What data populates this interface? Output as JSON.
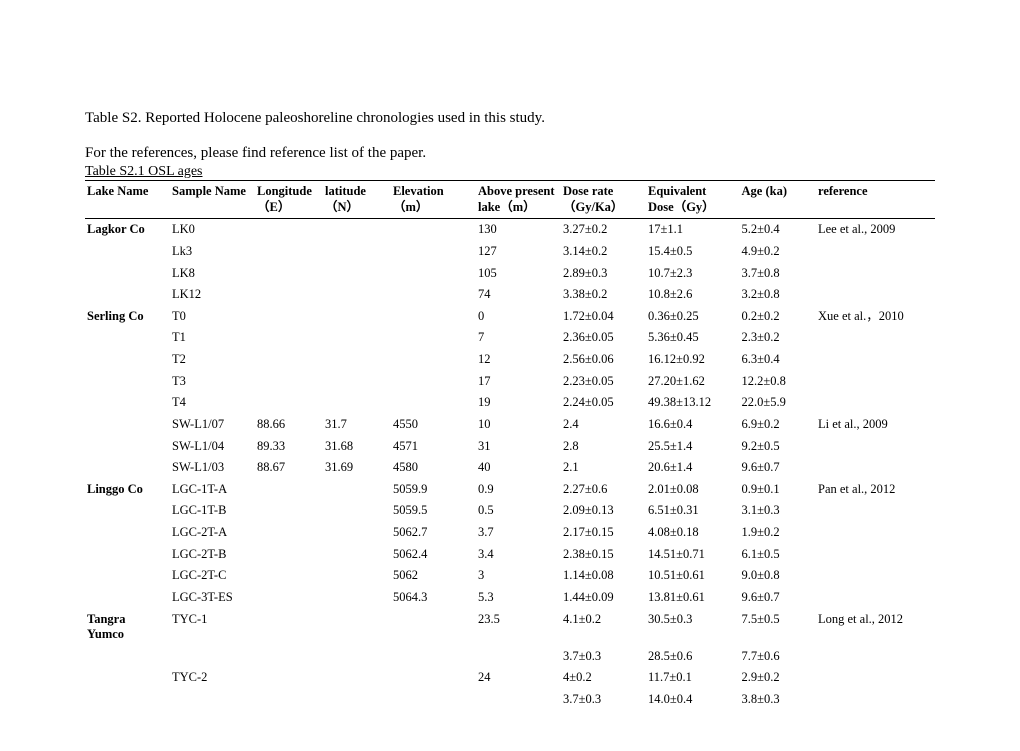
{
  "title": "Table S2. Reported Holocene paleoshoreline chronologies used in this study.",
  "subtitle": "For the references, please find reference list of the paper.",
  "subtable_title": "Table S2.1 OSL ages",
  "columns": {
    "lake": "Lake Name",
    "sample": "Sample Name",
    "lon": "Longitude（E）",
    "lat": "latitude（N）",
    "elev": "Elevation（m）",
    "above": "Above present lake（m）",
    "dose": "Dose rate（Gy/Ka）",
    "equiv": "Equivalent Dose（Gy）",
    "age": "Age (ka)",
    "ref": "reference"
  },
  "rows": [
    {
      "lake": "Lagkor Co",
      "sample": "LK0",
      "lon": "",
      "lat": "",
      "elev": "",
      "above": "130",
      "dose": "3.27±0.2",
      "equiv": "17±1.1",
      "age": "5.2±0.4",
      "ref": "Lee et al., 2009"
    },
    {
      "lake": "",
      "sample": "Lk3",
      "lon": "",
      "lat": "",
      "elev": "",
      "above": "127",
      "dose": "3.14±0.2",
      "equiv": "15.4±0.5",
      "age": "4.9±0.2",
      "ref": ""
    },
    {
      "lake": "",
      "sample": "LK8",
      "lon": "",
      "lat": "",
      "elev": "",
      "above": "105",
      "dose": "2.89±0.3",
      "equiv": "10.7±2.3",
      "age": "3.7±0.8",
      "ref": ""
    },
    {
      "lake": "",
      "sample": "LK12",
      "lon": "",
      "lat": "",
      "elev": "",
      "above": "74",
      "dose": "3.38±0.2",
      "equiv": "10.8±2.6",
      "age": "3.2±0.8",
      "ref": ""
    },
    {
      "lake": "Serling Co",
      "sample": "T0",
      "lon": "",
      "lat": "",
      "elev": "",
      "above": "0",
      "dose": "1.72±0.04",
      "equiv": "0.36±0.25",
      "age": "0.2±0.2",
      "ref": "Xue et al.，2010"
    },
    {
      "lake": "",
      "sample": "T1",
      "lon": "",
      "lat": "",
      "elev": "",
      "above": "7",
      "dose": "2.36±0.05",
      "equiv": "5.36±0.45",
      "age": "2.3±0.2",
      "ref": ""
    },
    {
      "lake": "",
      "sample": "T2",
      "lon": "",
      "lat": "",
      "elev": "",
      "above": "12",
      "dose": "2.56±0.06",
      "equiv": "16.12±0.92",
      "age": "6.3±0.4",
      "ref": ""
    },
    {
      "lake": "",
      "sample": "T3",
      "lon": "",
      "lat": "",
      "elev": "",
      "above": "17",
      "dose": "2.23±0.05",
      "equiv": "27.20±1.62",
      "age": "12.2±0.8",
      "ref": ""
    },
    {
      "lake": "",
      "sample": "T4",
      "lon": "",
      "lat": "",
      "elev": "",
      "above": "19",
      "dose": "2.24±0.05",
      "equiv": "49.38±13.12",
      "age": "22.0±5.9",
      "ref": ""
    },
    {
      "lake": "",
      "sample": "SW-L1/07",
      "lon": "88.66",
      "lat": "31.7",
      "elev": "4550",
      "above": "10",
      "dose": "2.4",
      "equiv": "16.6±0.4",
      "age": "6.9±0.2",
      "ref": "Li et al., 2009"
    },
    {
      "lake": "",
      "sample": "SW-L1/04",
      "lon": "89.33",
      "lat": "31.68",
      "elev": "4571",
      "above": "31",
      "dose": "2.8",
      "equiv": "25.5±1.4",
      "age": "9.2±0.5",
      "ref": ""
    },
    {
      "lake": "",
      "sample": "SW-L1/03",
      "lon": "88.67",
      "lat": "31.69",
      "elev": "4580",
      "above": "40",
      "dose": "2.1",
      "equiv": "20.6±1.4",
      "age": "9.6±0.7",
      "ref": ""
    },
    {
      "lake": "Linggo Co",
      "sample": "LGC-1T-A",
      "lon": "",
      "lat": "",
      "elev": "5059.9",
      "above": "0.9",
      "dose": "2.27±0.6",
      "equiv": "2.01±0.08",
      "age": "0.9±0.1",
      "ref": "Pan et al., 2012"
    },
    {
      "lake": "",
      "sample": "LGC-1T-B",
      "lon": "",
      "lat": "",
      "elev": "5059.5",
      "above": "0.5",
      "dose": "2.09±0.13",
      "equiv": "6.51±0.31",
      "age": "3.1±0.3",
      "ref": ""
    },
    {
      "lake": "",
      "sample": "LGC-2T-A",
      "lon": "",
      "lat": "",
      "elev": "5062.7",
      "above": "3.7",
      "dose": "2.17±0.15",
      "equiv": "4.08±0.18",
      "age": "1.9±0.2",
      "ref": ""
    },
    {
      "lake": "",
      "sample": "LGC-2T-B",
      "lon": "",
      "lat": "",
      "elev": "5062.4",
      "above": "3.4",
      "dose": "2.38±0.15",
      "equiv": "14.51±0.71",
      "age": "6.1±0.5",
      "ref": ""
    },
    {
      "lake": "",
      "sample": "LGC-2T-C",
      "lon": "",
      "lat": "",
      "elev": "5062",
      "above": "3",
      "dose": "1.14±0.08",
      "equiv": "10.51±0.61",
      "age": "9.0±0.8",
      "ref": ""
    },
    {
      "lake": "",
      "sample": "LGC-3T-ES",
      "lon": "",
      "lat": "",
      "elev": "5064.3",
      "above": "5.3",
      "dose": "1.44±0.09",
      "equiv": "13.81±0.61",
      "age": "9.6±0.7",
      "ref": ""
    },
    {
      "lake": "Tangra Yumco",
      "sample": "TYC-1",
      "lon": "",
      "lat": "",
      "elev": "",
      "above": "23.5",
      "dose": "4.1±0.2",
      "equiv": "30.5±0.3",
      "age": "7.5±0.5",
      "ref": "Long et al., 2012"
    },
    {
      "lake": "",
      "sample": "",
      "lon": "",
      "lat": "",
      "elev": "",
      "above": "",
      "dose": "3.7±0.3",
      "equiv": "28.5±0.6",
      "age": "7.7±0.6",
      "ref": ""
    },
    {
      "lake": "",
      "sample": "TYC-2",
      "lon": "",
      "lat": "",
      "elev": "",
      "above": "24",
      "dose": "4±0.2",
      "equiv": "11.7±0.1",
      "age": "2.9±0.2",
      "ref": ""
    },
    {
      "lake": "",
      "sample": "",
      "lon": "",
      "lat": "",
      "elev": "",
      "above": "",
      "dose": "3.7±0.3",
      "equiv": "14.0±0.4",
      "age": "3.8±0.3",
      "ref": ""
    }
  ]
}
